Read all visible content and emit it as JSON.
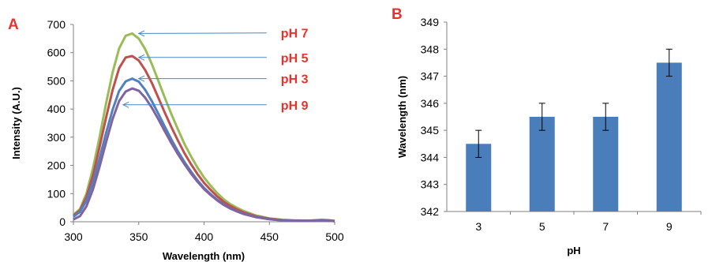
{
  "colors": {
    "panel_letter": "#e8322e",
    "ph_label": "#e8322e",
    "arrow": "#4a86c5",
    "bar": "#4a7ebb",
    "axis": "#808080",
    "text": "#000000"
  },
  "chart_data": [
    {
      "panel": "A",
      "type": "line",
      "xlabel": "Wavelength (nm)",
      "ylabel": "Intensity (A.U.)",
      "xlim": [
        300,
        500
      ],
      "ylim": [
        0,
        700
      ],
      "x_ticks": [
        300,
        350,
        400,
        450,
        500
      ],
      "y_ticks": [
        0,
        100,
        200,
        300,
        400,
        500,
        600,
        700
      ],
      "grid": false,
      "series": [
        {
          "name": "pH 7",
          "color": "#9bbb59",
          "x": [
            300,
            305,
            310,
            315,
            320,
            325,
            330,
            335,
            340,
            345,
            350,
            355,
            360,
            365,
            370,
            375,
            380,
            385,
            390,
            395,
            400,
            405,
            410,
            415,
            420,
            425,
            430,
            440,
            450,
            460,
            470,
            480,
            490,
            495,
            500
          ],
          "y": [
            25,
            45,
            100,
            190,
            300,
            420,
            530,
            615,
            660,
            668,
            650,
            612,
            560,
            500,
            440,
            382,
            328,
            276,
            232,
            192,
            157,
            128,
            102,
            80,
            63,
            50,
            39,
            22,
            12,
            7,
            5,
            4,
            7,
            6,
            3
          ]
        },
        {
          "name": "pH 5",
          "color": "#c0504d",
          "x": [
            300,
            305,
            310,
            315,
            320,
            325,
            330,
            335,
            340,
            345,
            350,
            355,
            360,
            365,
            370,
            375,
            380,
            385,
            390,
            395,
            400,
            405,
            410,
            415,
            420,
            425,
            430,
            440,
            450,
            460,
            470,
            480,
            490,
            495,
            500
          ],
          "y": [
            22,
            40,
            88,
            165,
            265,
            370,
            468,
            545,
            583,
            588,
            572,
            538,
            493,
            440,
            387,
            336,
            288,
            243,
            204,
            169,
            138,
            113,
            90,
            71,
            56,
            44,
            34,
            19,
            11,
            6,
            4,
            4,
            6,
            5,
            3
          ]
        },
        {
          "name": "pH 3",
          "color": "#4f81bd",
          "x": [
            300,
            305,
            310,
            315,
            320,
            325,
            330,
            335,
            340,
            345,
            350,
            355,
            360,
            365,
            370,
            375,
            380,
            385,
            390,
            395,
            400,
            405,
            410,
            415,
            420,
            425,
            430,
            440,
            450,
            460,
            470,
            480,
            490,
            495,
            500
          ],
          "y": [
            18,
            35,
            75,
            140,
            225,
            315,
            398,
            464,
            498,
            508,
            497,
            468,
            428,
            383,
            337,
            292,
            250,
            212,
            178,
            147,
            120,
            98,
            78,
            62,
            48,
            38,
            29,
            17,
            9,
            5,
            3,
            3,
            5,
            4,
            2
          ]
        },
        {
          "name": "pH 9",
          "color": "#8064a2",
          "x": [
            300,
            305,
            310,
            315,
            320,
            325,
            330,
            335,
            340,
            345,
            350,
            355,
            360,
            365,
            370,
            375,
            380,
            385,
            390,
            395,
            400,
            405,
            410,
            415,
            420,
            425,
            430,
            440,
            450,
            460,
            470,
            480,
            490,
            495,
            500
          ],
          "y": [
            8,
            20,
            55,
            115,
            195,
            282,
            365,
            428,
            462,
            473,
            465,
            440,
            405,
            364,
            321,
            279,
            240,
            204,
            171,
            142,
            116,
            95,
            76,
            60,
            47,
            37,
            28,
            16,
            9,
            5,
            3,
            3,
            5,
            4,
            2
          ]
        }
      ],
      "annotations": [
        {
          "label": "pH 7",
          "points_to": [
            350,
            668
          ],
          "text_at": [
            460,
            670
          ]
        },
        {
          "label": "pH 5",
          "points_to": [
            350,
            583
          ],
          "text_at": [
            460,
            583
          ]
        },
        {
          "label": "pH 3",
          "points_to": [
            350,
            508
          ],
          "text_at": [
            460,
            508
          ]
        },
        {
          "label": "pH 9",
          "points_to": [
            338,
            415
          ],
          "text_at": [
            460,
            415
          ]
        }
      ]
    },
    {
      "panel": "B",
      "type": "bar",
      "xlabel": "pH",
      "ylabel": "Wavelength (nm)",
      "categories": [
        "3",
        "5",
        "7",
        "9"
      ],
      "values": [
        344.5,
        345.5,
        345.5,
        347.5
      ],
      "error": [
        0.5,
        0.5,
        0.5,
        0.5
      ],
      "ylim": [
        342,
        349
      ],
      "y_ticks": [
        342,
        343,
        344,
        345,
        346,
        347,
        348,
        349
      ],
      "grid": false
    }
  ]
}
